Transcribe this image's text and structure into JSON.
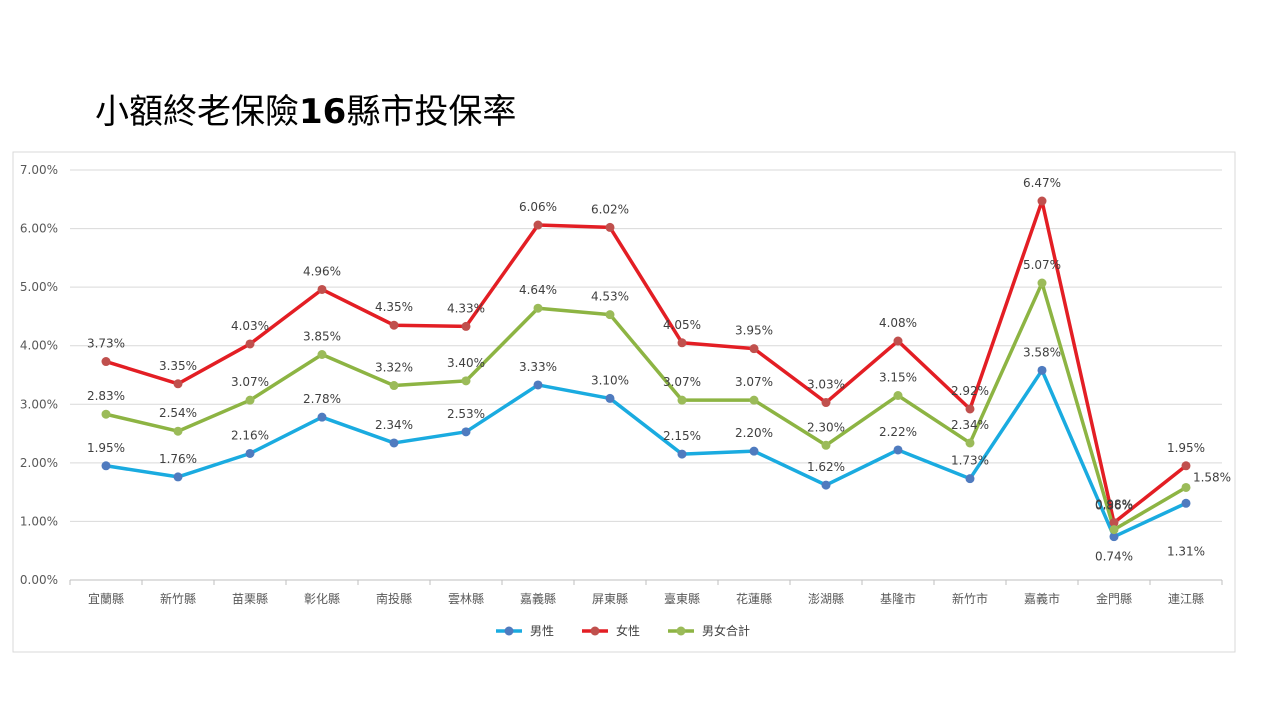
{
  "slide": {
    "title_prefix": "小額終老保險",
    "title_bold": "16",
    "title_suffix": "縣市投保率"
  },
  "chart_data": {
    "type": "line",
    "categories": [
      "宜蘭縣",
      "新竹縣",
      "苗栗縣",
      "彰化縣",
      "南投縣",
      "雲林縣",
      "嘉義縣",
      "屏東縣",
      "臺東縣",
      "花蓮縣",
      "澎湖縣",
      "基隆市",
      "新竹市",
      "嘉義市",
      "金門縣",
      "連江縣"
    ],
    "ylim": [
      0,
      0.07
    ],
    "yticks": [
      "0.00%",
      "1.00%",
      "2.00%",
      "3.00%",
      "4.00%",
      "5.00%",
      "6.00%",
      "7.00%"
    ],
    "legend_position": "bottom",
    "grid": true,
    "series": [
      {
        "name": "男性",
        "color": "#1aabe0",
        "marker": "#4f7bbf",
        "values": [
          1.95,
          1.76,
          2.16,
          2.78,
          2.34,
          2.53,
          3.33,
          3.1,
          2.15,
          2.2,
          1.62,
          2.22,
          1.73,
          3.58,
          0.74,
          1.31
        ],
        "labels": [
          "1.95%",
          "1.76%",
          "2.16%",
          "2.78%",
          "2.34%",
          "2.53%",
          "3.33%",
          "3.10%",
          "2.15%",
          "2.20%",
          "1.62%",
          "2.22%",
          "1.73%",
          "3.58%",
          "0.74%",
          "1.31%"
        ]
      },
      {
        "name": "女性",
        "color": "#e31e24",
        "marker": "#c0504d",
        "values": [
          3.73,
          3.35,
          4.03,
          4.96,
          4.35,
          4.33,
          6.06,
          6.02,
          4.05,
          3.95,
          3.03,
          4.08,
          2.92,
          6.47,
          0.98,
          1.95
        ],
        "labels": [
          "3.73%",
          "3.35%",
          "4.03%",
          "4.96%",
          "4.35%",
          "4.33%",
          "6.06%",
          "6.02%",
          "4.05%",
          "3.95%",
          "3.03%",
          "4.08%",
          "2.92%",
          "6.47%",
          "0.98%",
          "1.95%"
        ]
      },
      {
        "name": "男女合計",
        "color": "#8db443",
        "marker": "#9bbb59",
        "values": [
          2.83,
          2.54,
          3.07,
          3.85,
          3.32,
          3.4,
          4.64,
          4.53,
          3.07,
          3.07,
          2.3,
          3.15,
          2.34,
          5.07,
          0.86,
          1.58
        ],
        "labels": [
          "2.83%",
          "2.54%",
          "3.07%",
          "3.85%",
          "3.32%",
          "3.40%",
          "4.64%",
          "4.53%",
          "3.07%",
          "3.07%",
          "2.30%",
          "3.15%",
          "2.34%",
          "5.07%",
          "0.86%",
          "1.58%"
        ]
      }
    ]
  }
}
